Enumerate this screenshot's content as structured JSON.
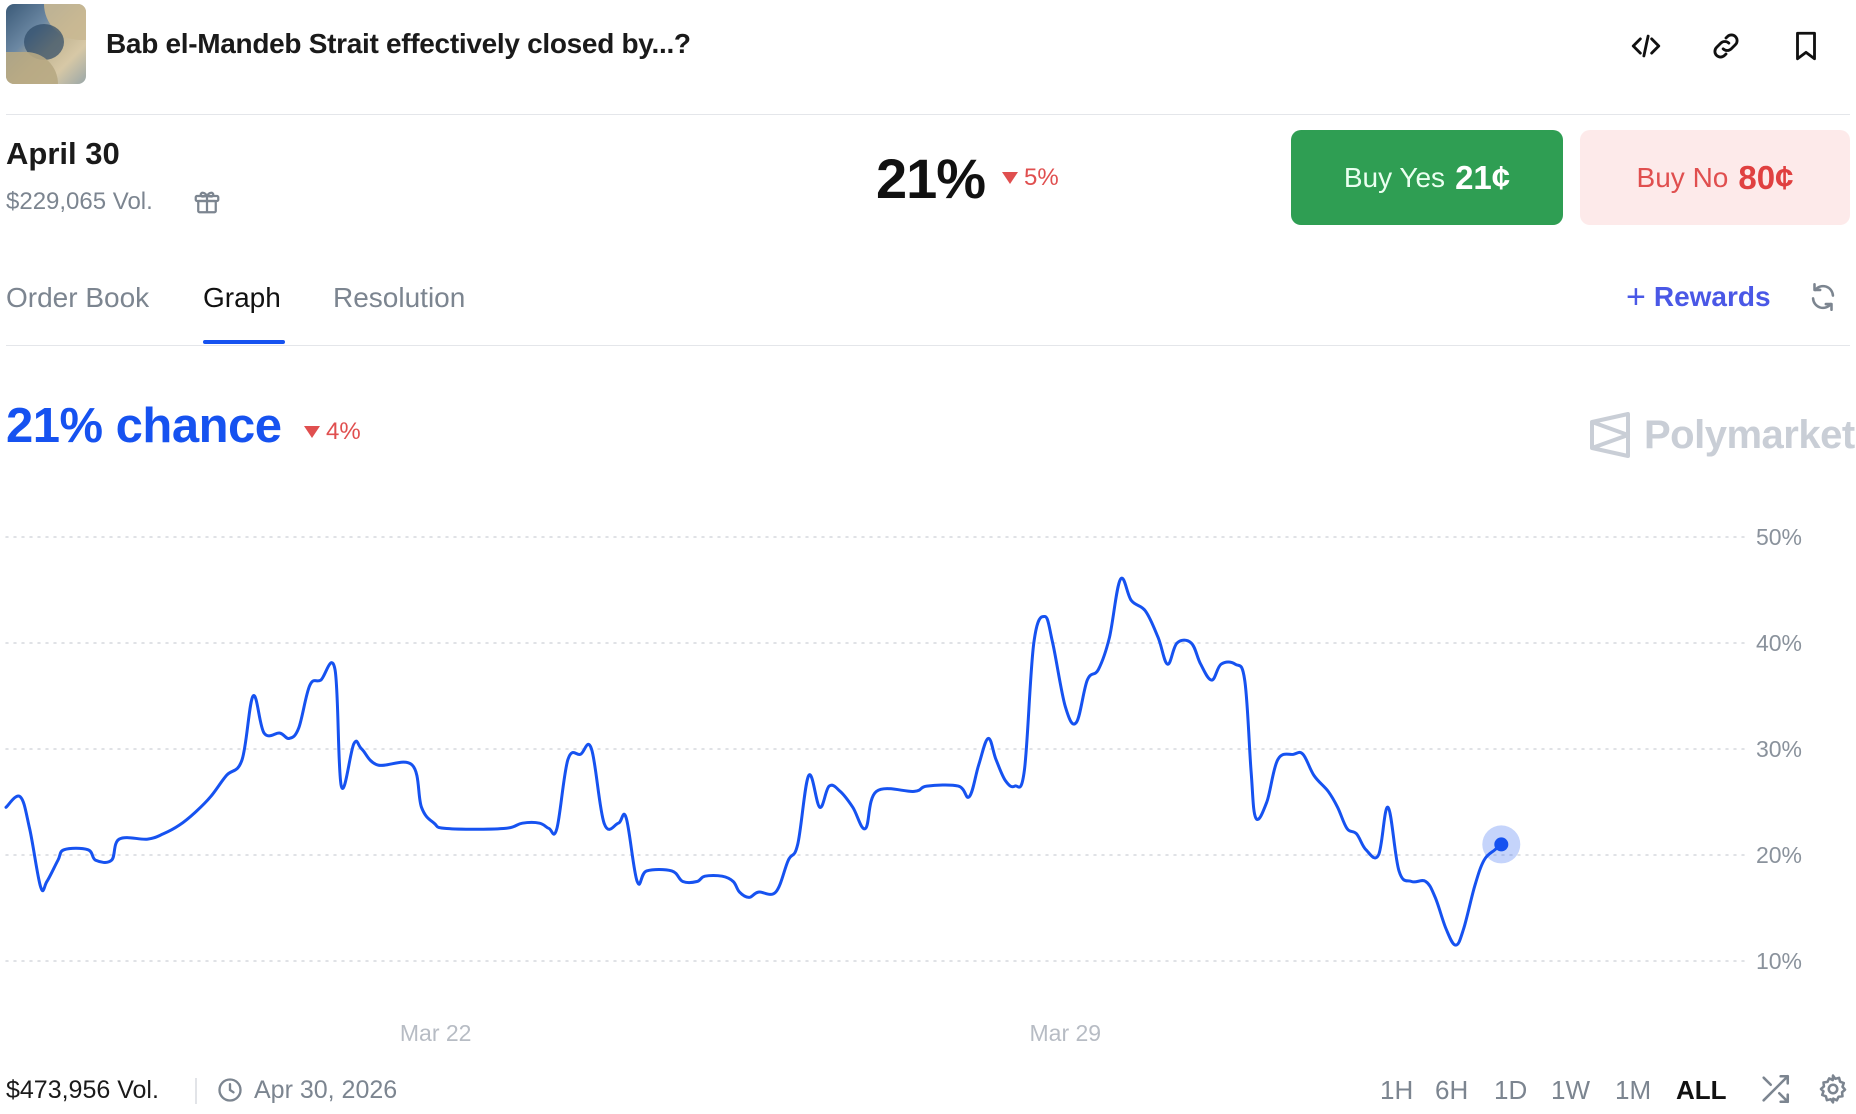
{
  "header": {
    "title": "Bab el-Mandeb Strait effectively closed by...?",
    "icons": [
      "code-icon",
      "link-icon",
      "bookmark-icon"
    ]
  },
  "outcome": {
    "name": "April 30",
    "volume": "$229,065 Vol.",
    "probability": "21%",
    "change": "5%",
    "buy_yes_label": "Buy Yes",
    "buy_yes_price": "21¢",
    "buy_no_label": "Buy No",
    "buy_no_price": "80¢"
  },
  "tabs": [
    {
      "label": "Order Book",
      "active": false
    },
    {
      "label": "Graph",
      "active": true
    },
    {
      "label": "Resolution",
      "active": false
    }
  ],
  "rewards_label": "Rewards",
  "chance": {
    "text": "21% chance",
    "change": "4%"
  },
  "brand": "Polymarket",
  "colors": {
    "accent": "#1652f0",
    "yes": "#2f9e53",
    "no_bg": "#fdeaea",
    "down": "#e04f4f"
  },
  "chart_data": {
    "type": "line",
    "y_ticks": [
      "50%",
      "40%",
      "30%",
      "20%",
      "10%"
    ],
    "y_tick_values": [
      50,
      40,
      30,
      20,
      10
    ],
    "x_ticks": [
      {
        "label": "Mar 22",
        "t": 0.273
      },
      {
        "label": "Mar 29",
        "t": 0.673
      }
    ],
    "ylim": [
      5,
      55
    ],
    "grid": true,
    "series": [
      {
        "points": [
          [
            0.0,
            24.5
          ],
          [
            0.009,
            25.5
          ],
          [
            0.015,
            22.5
          ],
          [
            0.022,
            17.0
          ],
          [
            0.026,
            17.5
          ],
          [
            0.033,
            19.5
          ],
          [
            0.037,
            20.5
          ],
          [
            0.052,
            20.5
          ],
          [
            0.057,
            19.5
          ],
          [
            0.067,
            19.5
          ],
          [
            0.072,
            21.5
          ],
          [
            0.09,
            21.5
          ],
          [
            0.1,
            22.0
          ],
          [
            0.11,
            22.8
          ],
          [
            0.12,
            24.0
          ],
          [
            0.13,
            25.5
          ],
          [
            0.14,
            27.5
          ],
          [
            0.15,
            29.0
          ],
          [
            0.157,
            35.0
          ],
          [
            0.164,
            31.5
          ],
          [
            0.174,
            31.5
          ],
          [
            0.18,
            31.0
          ],
          [
            0.186,
            32.0
          ],
          [
            0.193,
            36.0
          ],
          [
            0.2,
            36.5
          ],
          [
            0.209,
            37.5
          ],
          [
            0.213,
            26.5
          ],
          [
            0.221,
            30.5
          ],
          [
            0.226,
            30.0
          ],
          [
            0.236,
            28.5
          ],
          [
            0.258,
            28.5
          ],
          [
            0.264,
            24.5
          ],
          [
            0.272,
            23.0
          ],
          [
            0.28,
            22.5
          ],
          [
            0.316,
            22.5
          ],
          [
            0.328,
            23.0
          ],
          [
            0.339,
            23.0
          ],
          [
            0.345,
            22.5
          ],
          [
            0.35,
            22.5
          ],
          [
            0.357,
            29.0
          ],
          [
            0.365,
            29.5
          ],
          [
            0.372,
            30.0
          ],
          [
            0.38,
            23.0
          ],
          [
            0.389,
            23.0
          ],
          [
            0.394,
            23.5
          ],
          [
            0.401,
            17.5
          ],
          [
            0.407,
            18.5
          ],
          [
            0.423,
            18.5
          ],
          [
            0.43,
            17.5
          ],
          [
            0.439,
            17.5
          ],
          [
            0.444,
            18.0
          ],
          [
            0.455,
            18.0
          ],
          [
            0.462,
            17.5
          ],
          [
            0.466,
            16.5
          ],
          [
            0.472,
            16.0
          ],
          [
            0.478,
            16.5
          ],
          [
            0.489,
            16.5
          ],
          [
            0.497,
            19.5
          ],
          [
            0.503,
            21.0
          ],
          [
            0.51,
            27.5
          ],
          [
            0.517,
            24.5
          ],
          [
            0.523,
            26.5
          ],
          [
            0.53,
            26.0
          ],
          [
            0.538,
            24.5
          ],
          [
            0.546,
            22.5
          ],
          [
            0.553,
            26.0
          ],
          [
            0.577,
            26.0
          ],
          [
            0.585,
            26.5
          ],
          [
            0.605,
            26.5
          ],
          [
            0.612,
            25.5
          ],
          [
            0.618,
            28.5
          ],
          [
            0.624,
            31.0
          ],
          [
            0.629,
            29.0
          ],
          [
            0.635,
            27.0
          ],
          [
            0.641,
            26.5
          ],
          [
            0.647,
            28.0
          ],
          [
            0.653,
            40.0
          ],
          [
            0.66,
            42.5
          ],
          [
            0.665,
            40.0
          ],
          [
            0.673,
            34.0
          ],
          [
            0.68,
            32.5
          ],
          [
            0.687,
            36.5
          ],
          [
            0.694,
            37.5
          ],
          [
            0.701,
            40.5
          ],
          [
            0.708,
            46.0
          ],
          [
            0.715,
            44.0
          ],
          [
            0.724,
            43.0
          ],
          [
            0.732,
            40.5
          ],
          [
            0.738,
            38.0
          ],
          [
            0.744,
            40.0
          ],
          [
            0.753,
            40.0
          ],
          [
            0.759,
            38.0
          ],
          [
            0.766,
            36.5
          ],
          [
            0.772,
            38.0
          ],
          [
            0.781,
            38.0
          ],
          [
            0.787,
            36.5
          ],
          [
            0.791,
            28.0
          ],
          [
            0.794,
            23.5
          ],
          [
            0.801,
            25.0
          ],
          [
            0.808,
            29.0
          ],
          [
            0.818,
            29.5
          ],
          [
            0.824,
            29.5
          ],
          [
            0.831,
            27.5
          ],
          [
            0.84,
            26.0
          ],
          [
            0.846,
            24.5
          ],
          [
            0.852,
            22.5
          ],
          [
            0.858,
            22.0
          ],
          [
            0.864,
            20.5
          ],
          [
            0.872,
            20.0
          ],
          [
            0.878,
            24.5
          ],
          [
            0.885,
            18.5
          ],
          [
            0.893,
            17.5
          ],
          [
            0.902,
            17.5
          ],
          [
            0.908,
            16.0
          ],
          [
            0.915,
            13.0
          ],
          [
            0.921,
            11.5
          ],
          [
            0.926,
            13.0
          ],
          [
            0.933,
            17.0
          ],
          [
            0.939,
            19.5
          ],
          [
            0.946,
            20.5
          ],
          [
            0.95,
            21.0
          ]
        ]
      }
    ]
  },
  "footer": {
    "volume": "$473,956 Vol.",
    "end_date": "Apr 30, 2026",
    "ranges": [
      {
        "label": "1H",
        "active": false
      },
      {
        "label": "6H",
        "active": false
      },
      {
        "label": "1D",
        "active": false
      },
      {
        "label": "1W",
        "active": false
      },
      {
        "label": "1M",
        "active": false
      },
      {
        "label": "ALL",
        "active": true
      }
    ]
  }
}
